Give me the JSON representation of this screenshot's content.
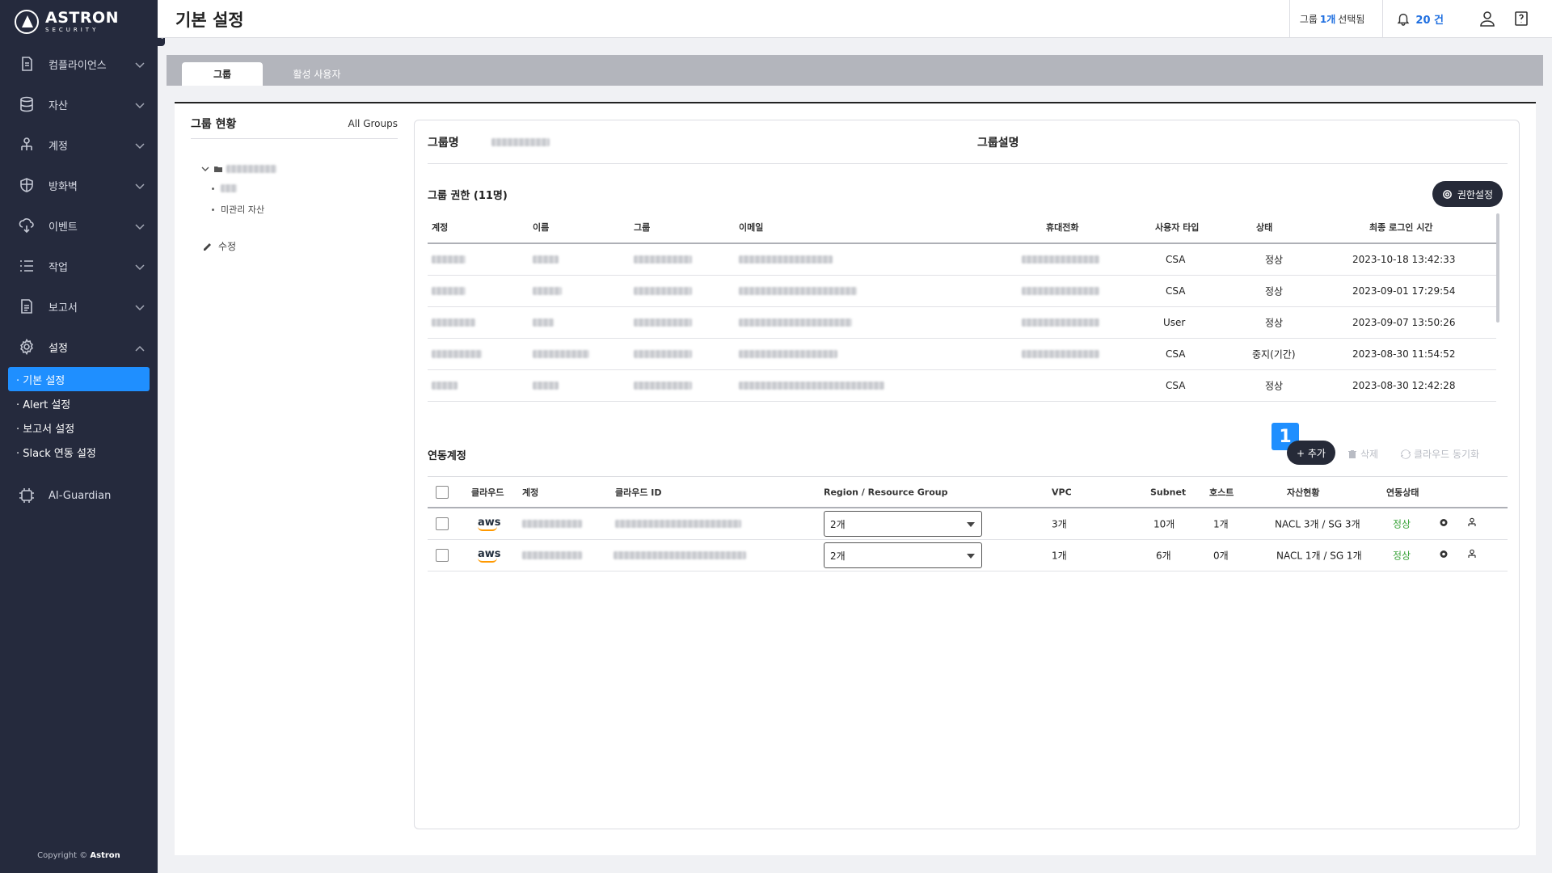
{
  "brand": {
    "name": "ASTRON",
    "tag": "SECURITY"
  },
  "sidebar": {
    "items": [
      {
        "label": "컴플라이언스",
        "icon": "compliance-icon"
      },
      {
        "label": "자산",
        "icon": "database-icon"
      },
      {
        "label": "계정",
        "icon": "account-tree-icon"
      },
      {
        "label": "방화벽",
        "icon": "shield-icon"
      },
      {
        "label": "이벤트",
        "icon": "cloud-event-icon"
      },
      {
        "label": "작업",
        "icon": "list-icon"
      },
      {
        "label": "보고서",
        "icon": "report-icon"
      },
      {
        "label": "설정",
        "icon": "gear-icon"
      }
    ],
    "sub_items": [
      "· 기본 설정",
      "· Alert 설정",
      "· 보고서 설정",
      "· Slack 연동 설정"
    ],
    "guardian": "AI-Guardian",
    "copyright_prefix": "Copyright ©",
    "copyright_brand": "Astron"
  },
  "header": {
    "title": "기본 설정",
    "group_prefix": "그룹",
    "group_count": "1개",
    "group_suffix": "선택됨",
    "notif_count": "20 건"
  },
  "tabs": [
    "그룹",
    "활성 사용자"
  ],
  "left_panel": {
    "title": "그룹 현황",
    "link": "All Groups",
    "tree_child_2": "미관리 자산",
    "edit_label": "수정"
  },
  "card": {
    "group_name_label": "그룹명",
    "group_desc_label": "그룹설명",
    "perm_title": "그룹 권한 (11명)",
    "perm_button": "권한설정",
    "users_columns": [
      "계정",
      "이름",
      "그룹",
      "이메일",
      "휴대전화",
      "사용자 타입",
      "상태",
      "최종 로그인 시간"
    ],
    "users": [
      {
        "type": "CSA",
        "status": "정상",
        "last_login": "2023-10-18 13:42:33"
      },
      {
        "type": "CSA",
        "status": "정상",
        "last_login": "2023-09-01 17:29:54"
      },
      {
        "type": "User",
        "status": "정상",
        "last_login": "2023-09-07 13:50:26"
      },
      {
        "type": "CSA",
        "status": "중지(기간)",
        "last_login": "2023-08-30 11:54:52"
      },
      {
        "type": "CSA",
        "status": "정상",
        "last_login": "2023-08-30 12:42:28"
      }
    ],
    "linked_title": "연동계정",
    "badge": "1",
    "add_button": "+ 추가",
    "delete_button": "삭제",
    "sync_button": "클라우드 동기화",
    "linked_columns": [
      "클라우드",
      "계정",
      "클라우드 ID",
      "Region / Resource Group",
      "VPC",
      "Subnet",
      "호스트",
      "자산현황",
      "연동상태"
    ],
    "linked": [
      {
        "cloud": "aws",
        "region": "2개",
        "vpc": "3개",
        "subnet": "10개",
        "host": "1개",
        "assets": "NACL 3개 / SG 3개",
        "state": "정상"
      },
      {
        "cloud": "aws",
        "region": "2개",
        "vpc": "1개",
        "subnet": "6개",
        "host": "0개",
        "assets": "NACL 1개 / SG 1개",
        "state": "정상"
      }
    ]
  }
}
